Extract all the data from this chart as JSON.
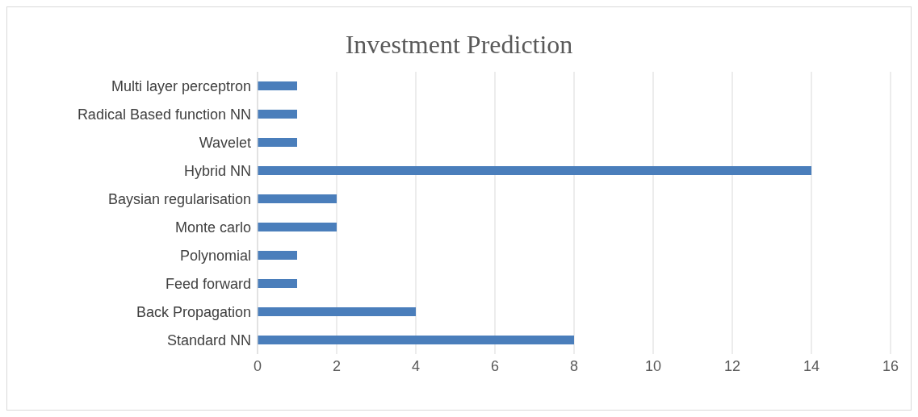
{
  "chart_data": {
    "type": "bar",
    "orientation": "horizontal",
    "title": "Investment Prediction",
    "categories": [
      "Multi layer perceptron",
      "Radical Based function NN",
      "Wavelet",
      "Hybrid NN",
      "Baysian regularisation",
      "Monte carlo",
      "Polynomial",
      "Feed forward",
      "Back Propagation",
      "Standard NN"
    ],
    "values": [
      1,
      1,
      1,
      14,
      2,
      2,
      1,
      1,
      4,
      8
    ],
    "color": "#4a7ebb",
    "xlim": [
      0,
      16
    ],
    "xticks": [
      0,
      2,
      4,
      6,
      8,
      10,
      12,
      14,
      16
    ],
    "grid": "x",
    "legend": false
  }
}
